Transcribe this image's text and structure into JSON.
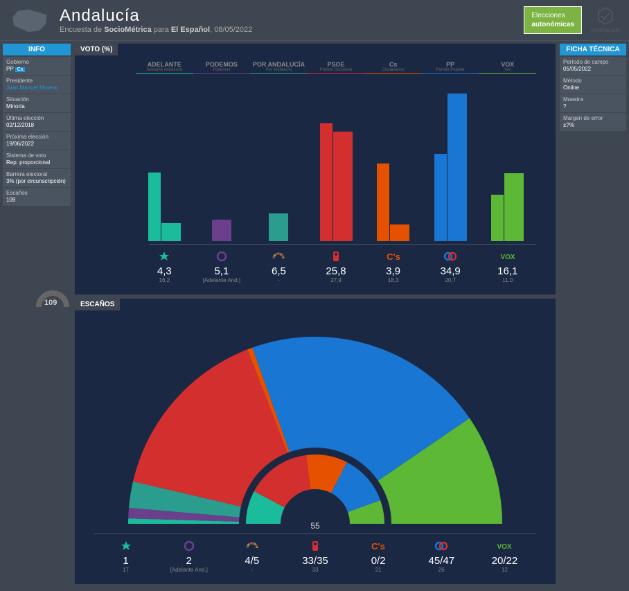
{
  "header": {
    "title": "Andalucía",
    "subtitle_pre": "Encuesta de ",
    "subtitle_bold": "SocioMétrica",
    "subtitle_mid": " para ",
    "subtitle_bold2": "El Español",
    "subtitle_date": ", 08/05/2022",
    "badge_line1": "Elecciones",
    "badge_line2": "autonómicas",
    "brand": "electograph"
  },
  "info": {
    "title": "INFO",
    "rows": [
      {
        "label": "Gobierno",
        "value": "PP",
        "badge": "Cs"
      },
      {
        "label": "Presidente",
        "value": "Juan Manuel Moreno",
        "link": true
      },
      {
        "label": "Situación",
        "value": "Minoría"
      },
      {
        "label": "Última elección",
        "value": "02/12/2018"
      },
      {
        "label": "Próxima elección",
        "value": "19/06/2022"
      },
      {
        "label": "Sistema de voto",
        "value": "Rep. proporcional"
      },
      {
        "label": "Barrera electoral",
        "value": "3% (por circunscripción)"
      },
      {
        "label": "Escaños",
        "value": "109"
      }
    ]
  },
  "ficha": {
    "title": "FICHA TÉCNICA",
    "rows": [
      {
        "label": "Período de campo",
        "value": "05/05/2022"
      },
      {
        "label": "Método",
        "value": "Online"
      },
      {
        "label": "Muestra",
        "value": "?"
      },
      {
        "label": "Margen de error",
        "value": "±?%"
      }
    ]
  },
  "voto": {
    "title": "VOTO (%)",
    "max_value": 36,
    "parties": [
      {
        "name": "ADELANTE",
        "sub": "Adelante Andalucía",
        "color": "#1abc9c",
        "prev": 16.2,
        "curr": 4.3,
        "prev_label": "16,2",
        "curr_label": "4,3"
      },
      {
        "name": "PODEMOS",
        "sub": "Podemos",
        "color": "#6b3f8c",
        "prev": null,
        "curr": 5.1,
        "prev_label": "[Adelante And.]",
        "curr_label": "5,1"
      },
      {
        "name": "POR ANDALUCÍA",
        "sub": "Por Andalucía",
        "color": "#2a9d8f",
        "prev": null,
        "curr": 6.5,
        "prev_label": "-",
        "curr_label": "6,5"
      },
      {
        "name": "PSOE",
        "sub": "Partido Socialista",
        "color": "#d32f2f",
        "prev": 27.9,
        "curr": 25.8,
        "prev_label": "27,9",
        "curr_label": "25,8"
      },
      {
        "name": "Cs",
        "sub": "Ciudadanos",
        "color": "#e65100",
        "prev": 18.3,
        "curr": 3.9,
        "prev_label": "18,3",
        "curr_label": "3,9"
      },
      {
        "name": "PP",
        "sub": "Partido Popular",
        "color": "#1976d2",
        "prev": 20.7,
        "curr": 34.9,
        "prev_label": "20,7",
        "curr_label": "34,9"
      },
      {
        "name": "VOX",
        "sub": "Vox",
        "color": "#5cb835",
        "prev": 11.0,
        "curr": 16.1,
        "prev_label": "11,0",
        "curr_label": "16,1"
      }
    ]
  },
  "escanos": {
    "title": "ESCAÑOS",
    "total": 109,
    "majority": 55,
    "outer": [
      {
        "color": "#1abc9c",
        "seats": 1
      },
      {
        "color": "#6b3f8c",
        "seats": 2
      },
      {
        "color": "#2a9d8f",
        "seats": 5
      },
      {
        "color": "#d32f2f",
        "seats": 34
      },
      {
        "color": "#e65100",
        "seats": 1
      },
      {
        "color": "#1976d2",
        "seats": 46
      },
      {
        "color": "#5cb835",
        "seats": 21
      }
    ],
    "inner": [
      {
        "color": "#1abc9c",
        "seats": 17
      },
      {
        "color": "#d32f2f",
        "seats": 33
      },
      {
        "color": "#e65100",
        "seats": 21
      },
      {
        "color": "#1976d2",
        "seats": 26
      },
      {
        "color": "#5cb835",
        "seats": 12
      }
    ],
    "results": [
      {
        "color": "#1abc9c",
        "range": "1",
        "prev": "17"
      },
      {
        "color": "#6b3f8c",
        "range": "2",
        "prev": "[Adelante And.]"
      },
      {
        "color": "#2a9d8f",
        "range": "4/5",
        "prev": "-"
      },
      {
        "color": "#d32f2f",
        "range": "33/35",
        "prev": "33"
      },
      {
        "color": "#e65100",
        "range": "0/2",
        "prev": "21"
      },
      {
        "color": "#1976d2",
        "range": "45/47",
        "prev": "26"
      },
      {
        "color": "#5cb835",
        "range": "20/22",
        "prev": "12"
      }
    ]
  },
  "colors": {
    "bg_dark": "#1a2844",
    "bg_med": "#3d4651",
    "bg_light": "#4a5360"
  }
}
